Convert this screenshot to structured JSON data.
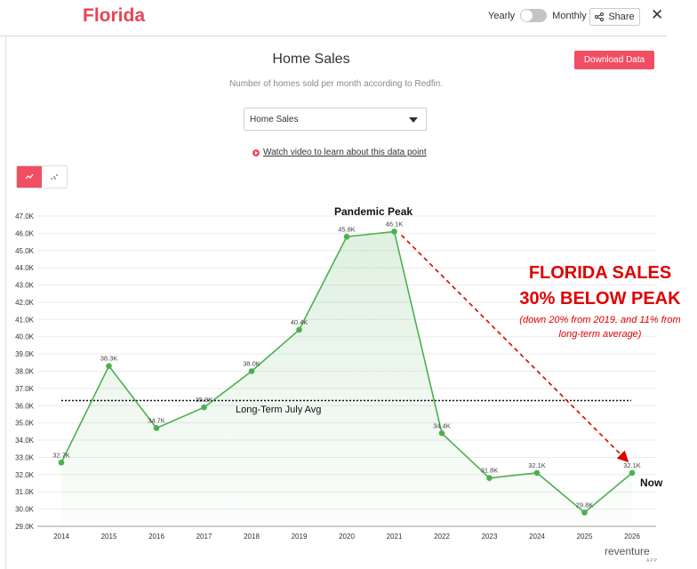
{
  "header": {
    "title": "Florida",
    "toggle_left": "Yearly",
    "toggle_right": "Monthly",
    "share_label": "Share",
    "close_glyph": "✕"
  },
  "panel": {
    "heading": "Home Sales",
    "subtitle": "Number of homes sold per month according to Redfin.",
    "download_label": "Download Data",
    "select_value": "Home Sales",
    "video_link": "Watch video to learn about this data point",
    "view_buttons": [
      "line-chart-icon",
      "scatter-icon"
    ]
  },
  "annotations": {
    "headline_1": "FLORIDA SALES",
    "headline_2": "30% BELOW PEAK",
    "note_1": "(down 20% from 2019, and 11% from",
    "note_2": "long-term average)",
    "peak_label": "Pandemic Peak",
    "now_label": "Now",
    "avg_label": "Long-Term July Avg"
  },
  "logo": {
    "name": "reventure",
    "sub": "APP"
  },
  "colors": {
    "accent": "#ef4e63",
    "line": "#4caf50",
    "annotation": "#e00000"
  },
  "chart_data": {
    "type": "area",
    "x": [
      "2014",
      "2015",
      "2016",
      "2017",
      "2018",
      "2019",
      "2020",
      "2021",
      "2022",
      "2023",
      "2024",
      "2025",
      "2026"
    ],
    "values": [
      32.7,
      38.3,
      34.7,
      35.9,
      38.0,
      40.4,
      45.8,
      46.1,
      34.4,
      31.8,
      32.1,
      29.8,
      32.1
    ],
    "data_labels": [
      "32.7K",
      "38.3K",
      "34.7K",
      "35.9K",
      "38.0K",
      "40.4K",
      "45.8K",
      "46.1K",
      "34.4K",
      "31.8K",
      "32.1K",
      "29.8K",
      "32.1K"
    ],
    "y_ticks": [
      29.0,
      30.0,
      31.0,
      32.0,
      33.0,
      34.0,
      35.0,
      36.0,
      37.0,
      38.0,
      39.0,
      40.0,
      41.0,
      42.0,
      43.0,
      44.0,
      45.0,
      46.0,
      47.0
    ],
    "y_tick_labels": [
      "29.0K",
      "30.0K",
      "31.0K",
      "32.0K",
      "33.0K",
      "34.0K",
      "35.0K",
      "36.0K",
      "37.0K",
      "38.0K",
      "39.0K",
      "40.0K",
      "41.0K",
      "42.0K",
      "43.0K",
      "44.0K",
      "45.0K",
      "46.0K",
      "47.0K"
    ],
    "ylim": [
      29.0,
      47.0
    ],
    "long_term_avg": 36.3,
    "grid": true
  }
}
